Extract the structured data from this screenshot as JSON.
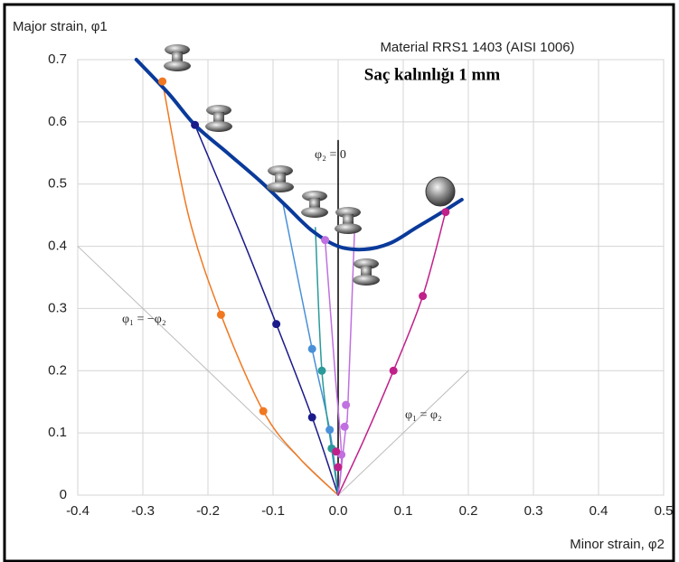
{
  "chart_data": {
    "type": "line",
    "y_label": "Major strain, φ1",
    "x_label": "Minor strain, φ2",
    "material_note": "Material RRS1 1403 (AISI 1006)",
    "thickness_note": "Saç kalınlığı 1 mm",
    "label_vertical": "φ₂ = 0",
    "label_negative": "φ₁ = −φ₂",
    "label_positive": "φ₁ = φ₂",
    "xlim": [
      -0.4,
      0.5
    ],
    "ylim": [
      0,
      0.7
    ],
    "xticks": [
      -0.4,
      -0.3,
      -0.2,
      -0.1,
      {
        "value": 0,
        "label": "0.0"
      },
      0.1,
      0.2,
      0.3,
      0.4,
      0.5
    ],
    "yticks": [
      0,
      0.1,
      0.2,
      0.3,
      0.4,
      0.5,
      0.6,
      0.7
    ],
    "grid": true,
    "series": [
      {
        "color": "#bbbbbb",
        "width": 1,
        "x": [
          -0.4,
          0
        ],
        "values": [
          0.4,
          0
        ]
      },
      {
        "color": "#bbbbbb",
        "width": 1,
        "x": [
          0,
          0.2
        ],
        "values": [
          0,
          0.2
        ]
      },
      {
        "color": "#000000",
        "width": 1.5,
        "x": [
          0,
          0
        ],
        "values": [
          0,
          0.57
        ]
      },
      {
        "color": "#f07820",
        "width": 1.5,
        "x": [
          0,
          -0.06,
          -0.115,
          -0.18,
          -0.23,
          -0.27
        ],
        "values": [
          0,
          0.06,
          0.135,
          0.29,
          0.45,
          0.665
        ]
      },
      {
        "color": "#1a1a8a",
        "width": 1.5,
        "x": [
          0,
          -0.04,
          -0.095,
          -0.15,
          -0.22
        ],
        "values": [
          0,
          0.125,
          0.275,
          0.42,
          0.595
        ]
      },
      {
        "color": "#4a90d8",
        "width": 1.5,
        "x": [
          0,
          -0.013,
          -0.04,
          -0.085
        ],
        "values": [
          0,
          0.105,
          0.235,
          0.47
        ]
      },
      {
        "color": "#2a9a9a",
        "width": 1.5,
        "x": [
          0,
          -0.01,
          -0.025,
          -0.035
        ],
        "values": [
          0,
          0.075,
          0.2,
          0.43
        ]
      },
      {
        "color": "#c070e0",
        "width": 1.5,
        "x": [
          0,
          0.005,
          -0.005,
          -0.02
        ],
        "values": [
          0,
          0.065,
          0.2,
          0.41
        ]
      },
      {
        "color": "#c070e0",
        "width": 1.5,
        "x": [
          0,
          0.012,
          0.015,
          0.025
        ],
        "values": [
          0,
          0.11,
          0.145,
          0.42
        ]
      },
      {
        "color": "#c0208a",
        "width": 1.5,
        "x": [
          0,
          0.04,
          0.085,
          0.13,
          0.165
        ],
        "values": [
          0,
          0.09,
          0.2,
          0.32,
          0.455
        ]
      },
      {
        "color": "#0a3a9a",
        "width": 4,
        "x": [
          -0.31,
          -0.26,
          -0.22,
          -0.17,
          -0.12,
          -0.08,
          -0.04,
          0,
          0.04,
          0.08,
          0.12,
          0.16,
          0.19
        ],
        "values": [
          0.7,
          0.645,
          0.595,
          0.55,
          0.505,
          0.465,
          0.425,
          0.4,
          0.395,
          0.405,
          0.43,
          0.455,
          0.475
        ]
      }
    ],
    "points": [
      {
        "color": "#f07820",
        "x": [
          -0.115,
          -0.18,
          -0.27
        ],
        "values": [
          0.135,
          0.29,
          0.665
        ]
      },
      {
        "color": "#1a1a8a",
        "x": [
          -0.04,
          -0.095,
          -0.22
        ],
        "values": [
          0.125,
          0.275,
          0.595
        ]
      },
      {
        "color": "#4a90d8",
        "x": [
          -0.013,
          -0.04
        ],
        "values": [
          0.105,
          0.235
        ]
      },
      {
        "color": "#2a9a9a",
        "x": [
          -0.01,
          -0.025
        ],
        "values": [
          0.075,
          0.2
        ]
      },
      {
        "color": "#c070e0",
        "x": [
          0.005,
          0.01,
          0.012,
          -0.02
        ],
        "values": [
          0.065,
          0.11,
          0.145,
          0.41
        ]
      },
      {
        "color": "#c0208a",
        "x": [
          0,
          -0.003,
          0.085,
          0.13,
          0.165
        ],
        "values": [
          0.045,
          0.07,
          0.2,
          0.32,
          0.455
        ]
      }
    ]
  }
}
